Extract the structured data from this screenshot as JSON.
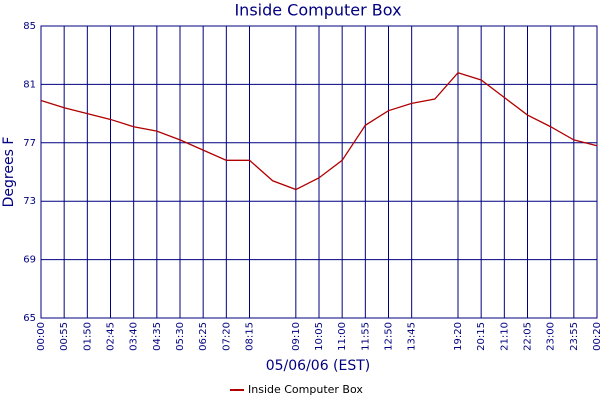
{
  "chart_data": {
    "type": "line",
    "title": "Inside Computer Box",
    "x_label": "05/06/06 (EST)",
    "y_label": "Degrees F",
    "categories": [
      "00:00",
      "00:55",
      "01:50",
      "02:45",
      "03:40",
      "04:35",
      "05:30",
      "06:25",
      "07:20",
      "08:15",
      null,
      "09:10",
      "10:05",
      "11:00",
      "11:55",
      "12:50",
      "13:45",
      null,
      "19:20",
      "20:15",
      "21:10",
      "22:05",
      "23:00",
      "23:55",
      "00:20"
    ],
    "series": [
      {
        "name": "Inside Computer Box",
        "color": "#b00000",
        "values": [
          79.9,
          79.4,
          79.0,
          78.6,
          78.1,
          77.8,
          77.2,
          76.5,
          75.8,
          75.8,
          74.4,
          73.8,
          74.6,
          75.8,
          78.2,
          79.2,
          79.7,
          80.0,
          81.8,
          81.3,
          80.1,
          78.9,
          78.1,
          77.2,
          76.8
        ]
      }
    ],
    "ylim": [
      65,
      85
    ],
    "yticks": [
      65,
      69,
      73,
      77,
      81,
      85
    ],
    "grid": true,
    "grid_color": "#000080",
    "legend": "bottom"
  }
}
